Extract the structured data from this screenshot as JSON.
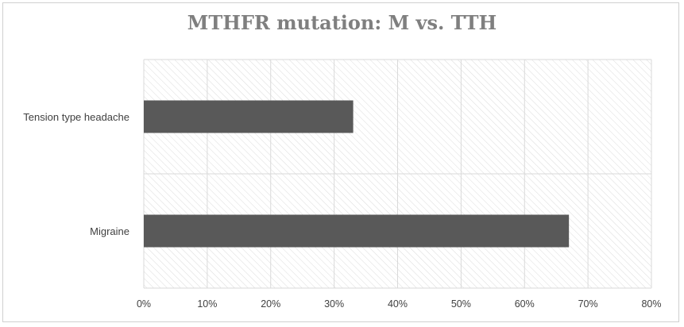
{
  "chart_data": {
    "type": "bar",
    "orientation": "horizontal",
    "title": "MTHFR mutation: M vs. TTH",
    "xlabel": "",
    "ylabel": "",
    "categories": [
      "Migraine",
      "Tension type headache"
    ],
    "values": [
      0.67,
      0.33
    ],
    "xlim": [
      0,
      0.8
    ],
    "x_ticks": [
      "0%",
      "10%",
      "20%",
      "30%",
      "40%",
      "50%",
      "60%",
      "70%",
      "80%"
    ],
    "grid": true,
    "legend": "none",
    "colors": {
      "bar": "#595959",
      "title": "#7f7f7f",
      "gridline": "#d9d9d9",
      "hatch": "#dcdcdc"
    }
  }
}
